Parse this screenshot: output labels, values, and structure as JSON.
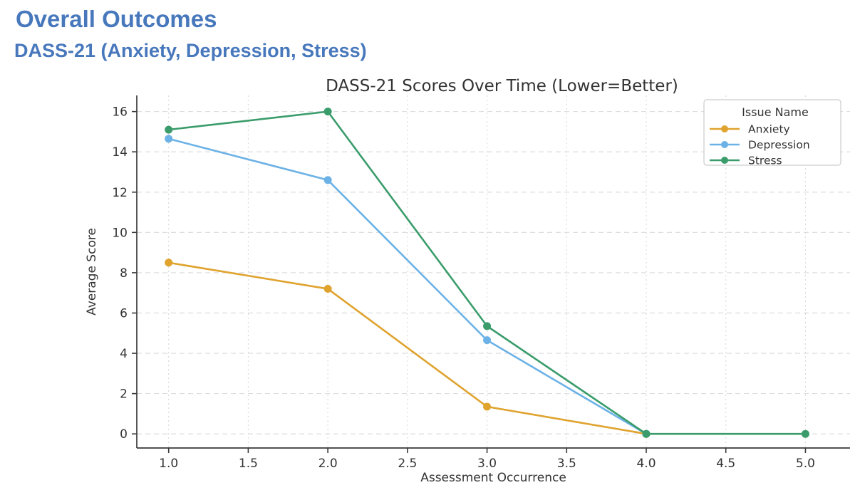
{
  "headings": {
    "title": "Overall Outcomes",
    "subtitle": "DASS-21 (Anxiety, Depression, Stress)",
    "accent_color": "#4878BC"
  },
  "chart_data": {
    "type": "line",
    "title": "DASS-21 Scores Over Time (Lower=Better)",
    "xlabel": "Assessment Occurrence",
    "ylabel": "Average Score",
    "legend_title": "Issue Name",
    "legend_position": "upper right",
    "grid": true,
    "xlim": [
      0.8,
      5.28
    ],
    "ylim": [
      -0.7,
      16.8
    ],
    "xticks": [
      1.0,
      1.5,
      2.0,
      2.5,
      3.0,
      3.5,
      4.0,
      4.5,
      5.0
    ],
    "yticks": [
      0,
      2,
      4,
      6,
      8,
      10,
      12,
      14,
      16
    ],
    "colors": {
      "gridline": "#d9d9d9",
      "spine": "#3a3a3a",
      "text": "#333333",
      "legend_border": "#cccccc"
    },
    "series": [
      {
        "name": "Anxiety",
        "color": "#DFA32E",
        "x": [
          1,
          2,
          3,
          4
        ],
        "values": [
          8.5,
          7.2,
          1.35,
          0
        ]
      },
      {
        "name": "Depression",
        "color": "#6CB2E6",
        "x": [
          1,
          2,
          3,
          4
        ],
        "values": [
          14.65,
          12.6,
          4.65,
          0
        ]
      },
      {
        "name": "Stress",
        "color": "#3A9C6B",
        "x": [
          1,
          2,
          3,
          4,
          5
        ],
        "values": [
          15.1,
          16.0,
          5.35,
          0,
          0
        ]
      }
    ]
  }
}
